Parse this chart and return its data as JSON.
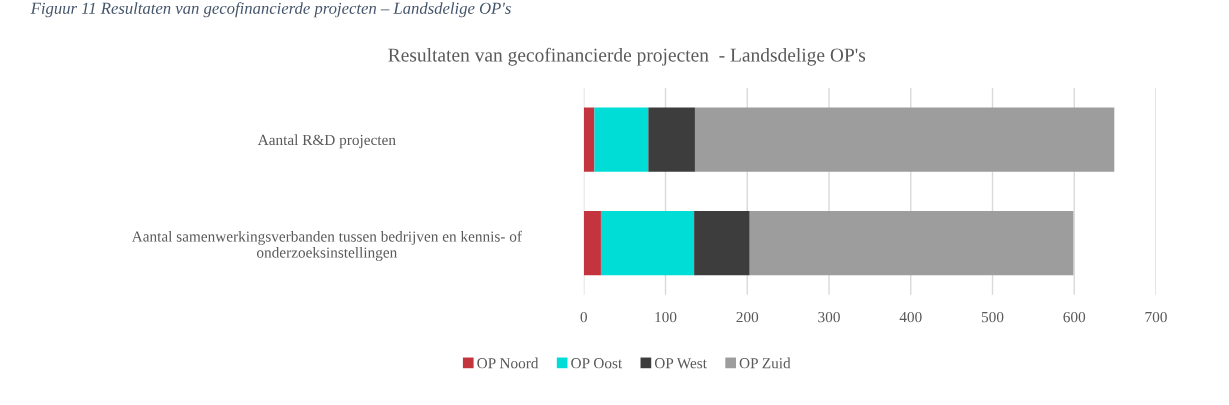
{
  "chart_data": {
    "type": "bar",
    "orientation": "horizontal",
    "stacked": true,
    "title": "Resultaten van gecofinancierde projecten  - Landsdelige OP's",
    "annotations": [
      "Figuur 11 Resultaten van gecofinancierde projecten – Landsdelige OP's"
    ],
    "categories": [
      "Aantal R&D projecten",
      "Aantal samenwerkingsverbanden tussen bedrijven en kennis- of\nonderzoeksinstellingen"
    ],
    "series": [
      {
        "name": "OP Noord",
        "color": "#c3343f",
        "values": [
          13,
          21
        ]
      },
      {
        "name": "OP Oost",
        "color": "#00dcd6",
        "values": [
          66,
          114
        ]
      },
      {
        "name": "OP West",
        "color": "#3d3d3d",
        "values": [
          57,
          68
        ]
      },
      {
        "name": "OP Zuid",
        "color": "#9d9d9d",
        "values": [
          513,
          396
        ]
      }
    ],
    "xlim": [
      0,
      700
    ],
    "xticks": [
      0,
      100,
      200,
      300,
      400,
      500,
      600,
      700
    ],
    "grid": "x",
    "legend": "bottom"
  }
}
